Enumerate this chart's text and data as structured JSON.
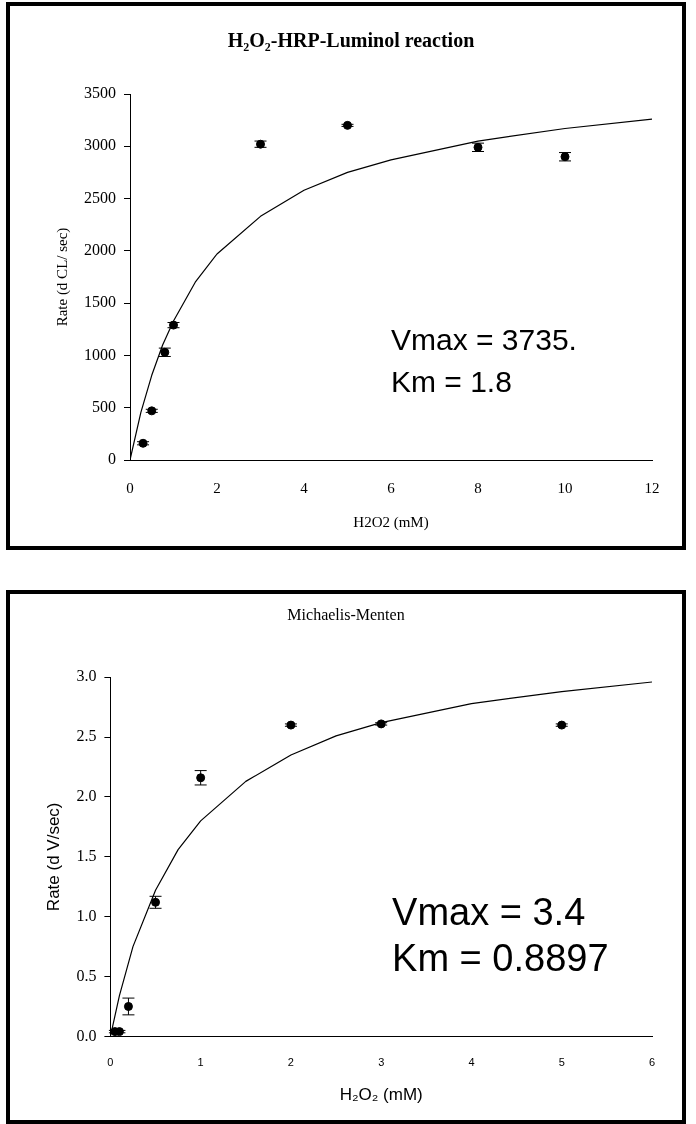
{
  "chart_data": [
    {
      "type": "scatter",
      "title": "H₂O₂-HRP-Luminol reaction",
      "xlabel": "H2O2 (mM)",
      "ylabel": "Rate (d CL/ sec)",
      "xlim": [
        0,
        12
      ],
      "xticks": [
        0,
        2,
        4,
        6,
        8,
        10,
        12
      ],
      "ylim": [
        0,
        3500
      ],
      "yticks": [
        0,
        500,
        1000,
        1500,
        2000,
        2500,
        3000,
        3500
      ],
      "grid": false,
      "legend": false,
      "annotations": [
        "Vmax = 3735.",
        "Km = 1.8"
      ],
      "series": [
        {
          "type": "scatter",
          "color": "#000000",
          "marker": "circle",
          "x": [
            0.3,
            0.5,
            0.8,
            1,
            3,
            5,
            8,
            10
          ],
          "values": [
            160,
            470,
            1030,
            1290,
            3020,
            3200,
            2990,
            2900
          ],
          "errors": [
            15,
            15,
            40,
            25,
            30,
            10,
            40,
            40
          ]
        },
        {
          "type": "line",
          "color": "#000000",
          "marker": "none",
          "x": [
            0,
            0.25,
            0.5,
            0.75,
            1,
            1.5,
            2,
            3,
            4,
            5,
            6,
            8,
            10,
            12
          ],
          "values": [
            0,
            455,
            810,
            1100,
            1330,
            1700,
            1970,
            2330,
            2580,
            2750,
            2870,
            3050,
            3170,
            3260
          ]
        }
      ]
    },
    {
      "type": "scatter",
      "title": "Michaelis-Menten",
      "xlabel": "H₂O₂ (mM)",
      "ylabel": "Rate (d V/sec)",
      "xlim": [
        0,
        6
      ],
      "xticks": [
        0,
        1,
        2,
        3,
        4,
        5,
        6
      ],
      "ylim": [
        0,
        3
      ],
      "yticks": [
        {
          "value": 0,
          "label": "0.0"
        },
        {
          "value": 0.5,
          "label": "0.5"
        },
        {
          "value": 1,
          "label": "1.0"
        },
        {
          "value": 1.5,
          "label": "1.5"
        },
        {
          "value": 2,
          "label": "2.0"
        },
        {
          "value": 2.5,
          "label": "2.5"
        },
        {
          "value": 3,
          "label": "3.0"
        }
      ],
      "grid": false,
      "legend": false,
      "annotations": [
        "Vmax = 3.4",
        "Km = 0.8897"
      ],
      "series": [
        {
          "type": "scatter",
          "color": "#000000",
          "marker": "circle",
          "x": [
            0.05,
            0.1,
            0.2,
            0.5,
            1,
            2,
            3,
            5
          ],
          "values": [
            0.04,
            0.04,
            0.25,
            1.12,
            2.16,
            2.6,
            2.61,
            2.6
          ],
          "errors": [
            0.01,
            0.01,
            0.07,
            0.05,
            0.06,
            0.01,
            0.01,
            0.01
          ]
        },
        {
          "type": "line",
          "color": "#000000",
          "marker": "none",
          "x": [
            0,
            0.1,
            0.25,
            0.5,
            0.75,
            1,
            1.5,
            2,
            2.5,
            3,
            4,
            5,
            6
          ],
          "values": [
            0,
            0.34,
            0.75,
            1.22,
            1.56,
            1.8,
            2.13,
            2.35,
            2.51,
            2.62,
            2.78,
            2.88,
            2.96
          ]
        }
      ]
    }
  ]
}
